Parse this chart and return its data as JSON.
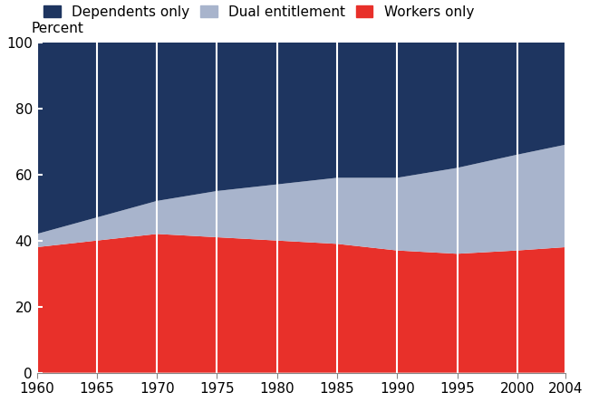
{
  "years": [
    1960,
    1965,
    1970,
    1975,
    1980,
    1985,
    1990,
    1995,
    2000,
    2004
  ],
  "workers_only": [
    38,
    40,
    42,
    41,
    40,
    39,
    37,
    36,
    37,
    38
  ],
  "dual_entitlement": [
    4,
    7,
    10,
    14,
    17,
    20,
    22,
    26,
    29,
    31
  ],
  "dependents_only": [
    58,
    53,
    48,
    45,
    43,
    41,
    41,
    38,
    34,
    31
  ],
  "colors": {
    "workers_only": "#e8302a",
    "dual_entitlement": "#a8b4cc",
    "dependents_only": "#1e3560"
  },
  "ylabel": "Percent",
  "ylim": [
    0,
    100
  ],
  "xlim": [
    1960,
    2004
  ],
  "yticks": [
    0,
    20,
    40,
    60,
    80,
    100
  ],
  "xticks": [
    1960,
    1965,
    1970,
    1975,
    1980,
    1985,
    1990,
    1995,
    2000,
    2004
  ],
  "background_color": "#ffffff",
  "tick_label_fontsize": 11,
  "legend_fontsize": 11
}
